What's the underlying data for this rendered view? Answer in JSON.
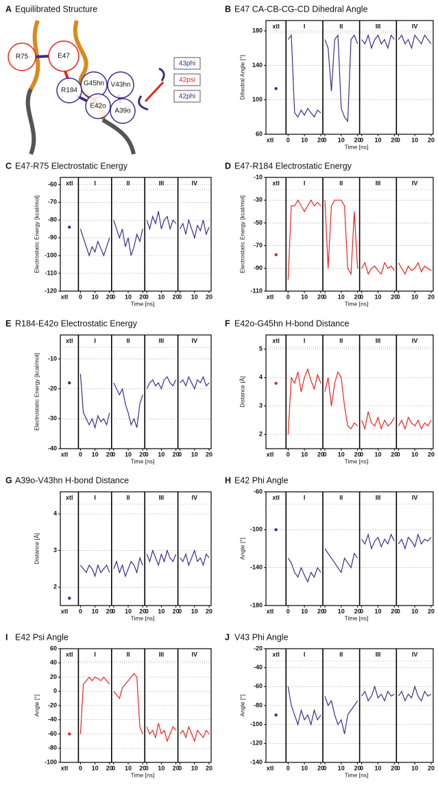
{
  "panel_a": {
    "panel": "A",
    "title": "Equilibrated Structure",
    "nodes": [
      "R75",
      "E47",
      "G45hn",
      "R184",
      "E42o",
      "V43hn",
      "A39o"
    ],
    "legend": [
      "43phi",
      "42psi",
      "42phi"
    ]
  },
  "chart_data": [
    {
      "type": "line",
      "panel": "B",
      "title": "E47 CA-CB-CG-CD Dihedral Angle",
      "ylabel": "Dihedral Angle [°]",
      "xlabel": "Time [ns]",
      "color": "#3b2a8c",
      "ylim": [
        60,
        192
      ],
      "yticks": [
        60,
        100,
        140,
        180
      ],
      "xlim": [
        0,
        20
      ],
      "xticks": [
        0,
        10,
        20
      ],
      "x": [
        0,
        2,
        4,
        6,
        8,
        10,
        12,
        14,
        16,
        18,
        20
      ],
      "crystal": {
        "label": "xtl",
        "value": 113
      },
      "series": [
        {
          "name": "I",
          "values": [
            170,
            175,
            85,
            80,
            88,
            82,
            90,
            85,
            80,
            88,
            85
          ]
        },
        {
          "name": "II",
          "values": [
            170,
            160,
            110,
            170,
            175,
            90,
            80,
            75,
            170,
            175,
            165
          ]
        },
        {
          "name": "III",
          "values": [
            170,
            165,
            175,
            160,
            170,
            175,
            165,
            170,
            160,
            175,
            170
          ]
        },
        {
          "name": "IV",
          "values": [
            170,
            175,
            165,
            170,
            160,
            175,
            170,
            165,
            175,
            170,
            165
          ]
        }
      ]
    },
    {
      "type": "line",
      "panel": "C",
      "title": "E47-R75 Electrostatic Energy",
      "ylabel": "Electrostatic Energy [kcal/mol]",
      "xlabel": "Time [ns]",
      "color": "#3b2a8c",
      "ylim": [
        -120,
        -56
      ],
      "yticks": [
        -120,
        -110,
        -100,
        -90,
        -80,
        -70,
        -60
      ],
      "xlim": [
        0,
        20
      ],
      "xticks": [
        0,
        10,
        20
      ],
      "x": [
        0,
        2,
        4,
        6,
        8,
        10,
        12,
        14,
        16,
        18,
        20
      ],
      "crystal": {
        "label": "xtl",
        "value": -84
      },
      "series": [
        {
          "name": "I",
          "values": [
            -85,
            -90,
            -95,
            -100,
            -95,
            -98,
            -92,
            -96,
            -100,
            -95,
            -90
          ]
        },
        {
          "name": "II",
          "values": [
            -80,
            -85,
            -90,
            -85,
            -95,
            -90,
            -100,
            -95,
            -88,
            -92,
            -85
          ]
        },
        {
          "name": "III",
          "values": [
            -80,
            -85,
            -78,
            -82,
            -75,
            -85,
            -80,
            -78,
            -85,
            -80,
            -82
          ]
        },
        {
          "name": "IV",
          "values": [
            -85,
            -82,
            -88,
            -80,
            -85,
            -90,
            -83,
            -86,
            -80,
            -88,
            -84
          ]
        }
      ]
    },
    {
      "type": "line",
      "panel": "D",
      "title": "E47-R184 Electrostatic Energy",
      "ylabel": "Electrostatic Energy [kcal/mol]",
      "xlabel": "Time [ns]",
      "color": "#e8231c",
      "ylim": [
        -110,
        -10
      ],
      "yticks": [
        -110,
        -90,
        -70,
        -50,
        -30,
        -10
      ],
      "xlim": [
        0,
        20
      ],
      "xticks": [
        0,
        10,
        20
      ],
      "x": [
        0,
        2,
        4,
        6,
        8,
        10,
        12,
        14,
        16,
        18,
        20
      ],
      "crystal": {
        "label": "xtl",
        "value": -78
      },
      "series": [
        {
          "name": "I",
          "values": [
            -100,
            -35,
            -35,
            -30,
            -35,
            -40,
            -35,
            -30,
            -35,
            -32,
            -35
          ]
        },
        {
          "name": "II",
          "values": [
            -30,
            -90,
            -35,
            -30,
            -30,
            -30,
            -35,
            -90,
            -95,
            -40,
            -90
          ]
        },
        {
          "name": "III",
          "values": [
            -90,
            -85,
            -95,
            -90,
            -88,
            -92,
            -95,
            -85,
            -90,
            -88,
            -92
          ]
        },
        {
          "name": "IV",
          "values": [
            -85,
            -90,
            -95,
            -88,
            -92,
            -90,
            -85,
            -93,
            -88,
            -90,
            -92
          ]
        }
      ]
    },
    {
      "type": "line",
      "panel": "E",
      "title": "R184-E42o Electrostatic Energy",
      "ylabel": "Electrostatic Energy [kcal/mol]",
      "xlabel": "Time [ns]",
      "color": "#3b2a8c",
      "ylim": [
        -40,
        -2
      ],
      "yticks": [
        -40,
        -30,
        -20,
        -10
      ],
      "xlim": [
        0,
        20
      ],
      "xticks": [
        0,
        10,
        20
      ],
      "x": [
        0,
        2,
        4,
        6,
        8,
        10,
        12,
        14,
        16,
        18,
        20
      ],
      "crystal": {
        "label": "xtl",
        "value": -18
      },
      "series": [
        {
          "name": "I",
          "values": [
            -15,
            -28,
            -30,
            -32,
            -30,
            -33,
            -29,
            -31,
            -30,
            -32,
            -28
          ]
        },
        {
          "name": "II",
          "values": [
            -18,
            -20,
            -22,
            -20,
            -25,
            -28,
            -32,
            -30,
            -33,
            -25,
            -22
          ]
        },
        {
          "name": "III",
          "values": [
            -20,
            -18,
            -17,
            -19,
            -18,
            -20,
            -17,
            -16,
            -18,
            -19,
            -17
          ]
        },
        {
          "name": "IV",
          "values": [
            -18,
            -17,
            -19,
            -16,
            -18,
            -20,
            -17,
            -18,
            -16,
            -19,
            -18
          ]
        }
      ]
    },
    {
      "type": "line",
      "panel": "F",
      "title": "E42o-G45hn H-bond Distance",
      "ylabel": "Distance [Å]",
      "xlabel": "Time [ns]",
      "color": "#e8231c",
      "ylim": [
        1.5,
        5.5
      ],
      "yticks": [
        2,
        3,
        4,
        5
      ],
      "xlim": [
        0,
        20
      ],
      "xticks": [
        0,
        10,
        20
      ],
      "x": [
        0,
        2,
        4,
        6,
        8,
        10,
        12,
        14,
        16,
        18,
        20
      ],
      "crystal": {
        "label": "xtl",
        "value": 3.8
      },
      "series": [
        {
          "name": "I",
          "values": [
            2.0,
            4.0,
            3.8,
            4.2,
            3.5,
            4.0,
            4.3,
            3.9,
            3.6,
            4.1,
            3.8
          ]
        },
        {
          "name": "II",
          "values": [
            3.5,
            4.0,
            3.0,
            3.8,
            4.2,
            4.0,
            3.0,
            2.3,
            2.2,
            2.4,
            2.3
          ]
        },
        {
          "name": "III",
          "values": [
            2.5,
            2.2,
            2.8,
            2.4,
            2.3,
            2.6,
            2.2,
            2.5,
            2.3,
            2.4,
            2.6
          ]
        },
        {
          "name": "IV",
          "values": [
            2.3,
            2.5,
            2.2,
            2.6,
            2.4,
            2.3,
            2.5,
            2.2,
            2.4,
            2.3,
            2.5
          ]
        }
      ]
    },
    {
      "type": "line",
      "panel": "G",
      "title": "A39o-V43hn H-bond Distance",
      "ylabel": "Distance [Å]",
      "xlabel": "Time [ns]",
      "color": "#3b2a8c",
      "ylim": [
        1.5,
        4.6
      ],
      "yticks": [
        2,
        3,
        4
      ],
      "xlim": [
        0,
        20
      ],
      "xticks": [
        0,
        10,
        20
      ],
      "x": [
        0,
        2,
        4,
        6,
        8,
        10,
        12,
        14,
        16,
        18,
        20
      ],
      "crystal": {
        "label": "xtl",
        "value": 1.7
      },
      "series": [
        {
          "name": "I",
          "values": [
            2.6,
            2.5,
            2.4,
            2.6,
            2.5,
            2.3,
            2.6,
            2.4,
            2.5,
            2.6,
            2.4
          ]
        },
        {
          "name": "II",
          "values": [
            2.5,
            2.7,
            2.4,
            2.6,
            2.3,
            2.5,
            2.7,
            2.6,
            2.4,
            2.8,
            2.6
          ]
        },
        {
          "name": "III",
          "values": [
            2.9,
            2.7,
            3.0,
            2.8,
            2.6,
            2.9,
            2.7,
            3.0,
            2.8,
            2.7,
            2.9
          ]
        },
        {
          "name": "IV",
          "values": [
            2.8,
            2.7,
            2.9,
            2.6,
            2.8,
            3.0,
            2.7,
            2.8,
            2.6,
            2.9,
            2.8
          ]
        }
      ]
    },
    {
      "type": "line",
      "panel": "H",
      "title": "E42 Phi Angle",
      "ylabel": "Angle [°]",
      "xlabel": "Time [ns]",
      "color": "#3b2a8c",
      "ylim": [
        -180,
        -60
      ],
      "yticks": [
        -180,
        -140,
        -100,
        -60
      ],
      "xlim": [
        0,
        20
      ],
      "xticks": [
        0,
        10,
        20
      ],
      "x": [
        0,
        2,
        4,
        6,
        8,
        10,
        12,
        14,
        16,
        18,
        20
      ],
      "crystal": {
        "label": "xtl",
        "value": -100
      },
      "series": [
        {
          "name": "I",
          "values": [
            -130,
            -135,
            -145,
            -150,
            -140,
            -148,
            -155,
            -145,
            -150,
            -140,
            -145
          ]
        },
        {
          "name": "II",
          "values": [
            -120,
            -125,
            -130,
            -135,
            -140,
            -145,
            -130,
            -135,
            -140,
            -125,
            -130
          ]
        },
        {
          "name": "III",
          "values": [
            -110,
            -115,
            -105,
            -120,
            -112,
            -108,
            -118,
            -110,
            -115,
            -105,
            -112
          ]
        },
        {
          "name": "IV",
          "values": [
            -115,
            -110,
            -120,
            -108,
            -112,
            -118,
            -105,
            -115,
            -110,
            -112,
            -108
          ]
        }
      ]
    },
    {
      "type": "line",
      "panel": "I",
      "title": "E42 Psi Angle",
      "ylabel": "Angle [°]",
      "xlabel": "Time [ns]",
      "color": "#e8231c",
      "ylim": [
        -100,
        60
      ],
      "yticks": [
        -100,
        -80,
        -60,
        -40,
        -20,
        0,
        20,
        40,
        60
      ],
      "xlim": [
        0,
        20
      ],
      "xticks": [
        0,
        10,
        20
      ],
      "x": [
        0,
        2,
        4,
        6,
        8,
        10,
        12,
        14,
        16,
        18,
        20
      ],
      "crystal": {
        "label": "xtl",
        "value": -60
      },
      "series": [
        {
          "name": "I",
          "values": [
            -60,
            10,
            15,
            20,
            15,
            20,
            18,
            15,
            20,
            15,
            10
          ]
        },
        {
          "name": "II",
          "values": [
            0,
            -5,
            -10,
            5,
            10,
            15,
            20,
            25,
            20,
            -50,
            -60
          ]
        },
        {
          "name": "III",
          "values": [
            -50,
            -60,
            -55,
            -65,
            -45,
            -60,
            -55,
            -70,
            -60,
            -50,
            -55
          ]
        },
        {
          "name": "IV",
          "values": [
            -60,
            -55,
            -65,
            -50,
            -60,
            -70,
            -55,
            -60,
            -65,
            -55,
            -60
          ]
        }
      ]
    },
    {
      "type": "line",
      "panel": "J",
      "title": "V43 Phi Angle",
      "ylabel": "Angle [°]",
      "xlabel": "Time [ns]",
      "color": "#3b2a8c",
      "ylim": [
        -140,
        -20
      ],
      "yticks": [
        -140,
        -120,
        -100,
        -80,
        -60,
        -40,
        -20
      ],
      "xlim": [
        0,
        20
      ],
      "xticks": [
        0,
        10,
        20
      ],
      "x": [
        0,
        2,
        4,
        6,
        8,
        10,
        12,
        14,
        16,
        18,
        20
      ],
      "crystal": {
        "label": "xtl",
        "value": -90
      },
      "series": [
        {
          "name": "I",
          "values": [
            -60,
            -80,
            -90,
            -100,
            -85,
            -95,
            -90,
            -100,
            -85,
            -95,
            -90
          ]
        },
        {
          "name": "II",
          "values": [
            -70,
            -80,
            -75,
            -90,
            -100,
            -95,
            -110,
            -90,
            -85,
            -80,
            -75
          ]
        },
        {
          "name": "III",
          "values": [
            -70,
            -65,
            -75,
            -70,
            -60,
            -72,
            -68,
            -75,
            -65,
            -70,
            -68
          ]
        },
        {
          "name": "IV",
          "values": [
            -70,
            -65,
            -75,
            -68,
            -72,
            -60,
            -70,
            -75,
            -65,
            -70,
            -68
          ]
        }
      ]
    }
  ]
}
